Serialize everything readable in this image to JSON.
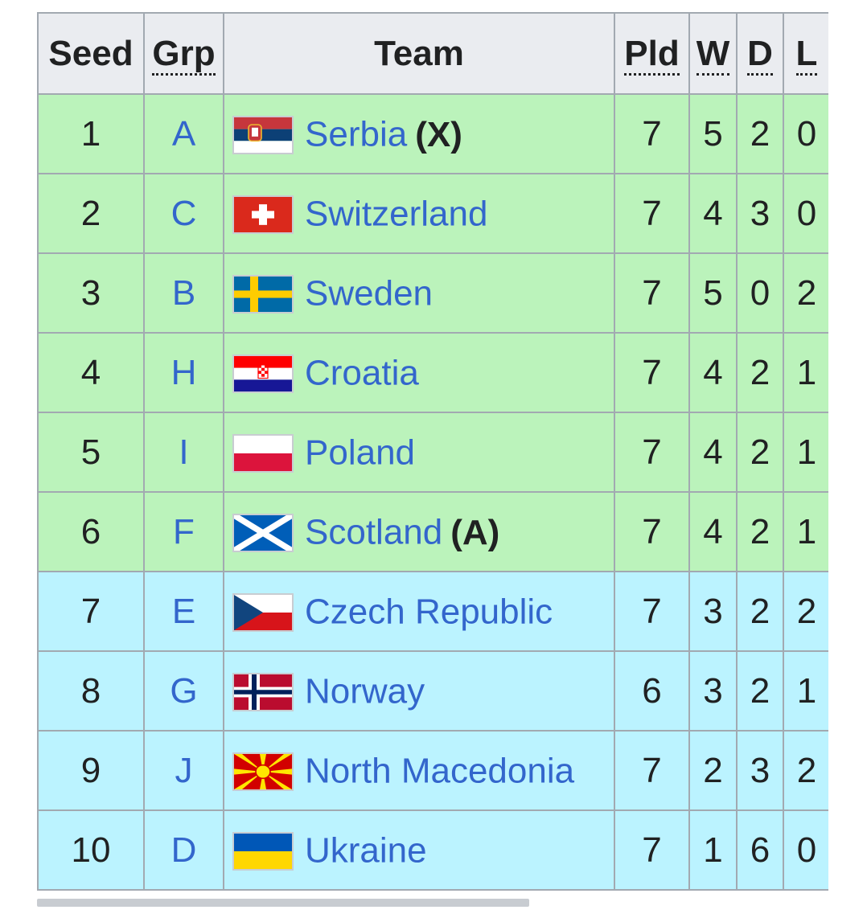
{
  "headers": {
    "seed": "Seed",
    "grp": "Grp",
    "team": "Team",
    "pld": "Pld",
    "w": "W",
    "d": "D",
    "l": "L"
  },
  "rows": [
    {
      "seed": "1",
      "grp": "A",
      "team": "Serbia",
      "qual": "(X)",
      "flag": "serbia-flag-icon",
      "pld": "7",
      "w": "5",
      "d": "2",
      "l": "0",
      "zone": "green"
    },
    {
      "seed": "2",
      "grp": "C",
      "team": "Switzerland",
      "qual": "",
      "flag": "switzerland-flag-icon",
      "pld": "7",
      "w": "4",
      "d": "3",
      "l": "0",
      "zone": "green"
    },
    {
      "seed": "3",
      "grp": "B",
      "team": "Sweden",
      "qual": "",
      "flag": "sweden-flag-icon",
      "pld": "7",
      "w": "5",
      "d": "0",
      "l": "2",
      "zone": "green"
    },
    {
      "seed": "4",
      "grp": "H",
      "team": "Croatia",
      "qual": "",
      "flag": "croatia-flag-icon",
      "pld": "7",
      "w": "4",
      "d": "2",
      "l": "1",
      "zone": "green"
    },
    {
      "seed": "5",
      "grp": "I",
      "team": "Poland",
      "qual": "",
      "flag": "poland-flag-icon",
      "pld": "7",
      "w": "4",
      "d": "2",
      "l": "1",
      "zone": "green"
    },
    {
      "seed": "6",
      "grp": "F",
      "team": "Scotland",
      "qual": "(A)",
      "flag": "scotland-flag-icon",
      "pld": "7",
      "w": "4",
      "d": "2",
      "l": "1",
      "zone": "green"
    },
    {
      "seed": "7",
      "grp": "E",
      "team": "Czech Republic",
      "qual": "",
      "flag": "czech-republic-flag-icon",
      "pld": "7",
      "w": "3",
      "d": "2",
      "l": "2",
      "zone": "blue"
    },
    {
      "seed": "8",
      "grp": "G",
      "team": "Norway",
      "qual": "",
      "flag": "norway-flag-icon",
      "pld": "6",
      "w": "3",
      "d": "2",
      "l": "1",
      "zone": "blue"
    },
    {
      "seed": "9",
      "grp": "J",
      "team": "North Macedonia",
      "qual": "",
      "flag": "north-macedonia-flag-icon",
      "pld": "7",
      "w": "2",
      "d": "3",
      "l": "2",
      "zone": "blue"
    },
    {
      "seed": "10",
      "grp": "D",
      "team": "Ukraine",
      "qual": "",
      "flag": "ukraine-flag-icon",
      "pld": "7",
      "w": "1",
      "d": "6",
      "l": "0",
      "zone": "blue"
    }
  ],
  "colors": {
    "qualified_zone": "#bbf3bb",
    "playoff_zone": "#bbf3ff",
    "header_bg": "#eaecf0",
    "link": "#3366cc"
  }
}
